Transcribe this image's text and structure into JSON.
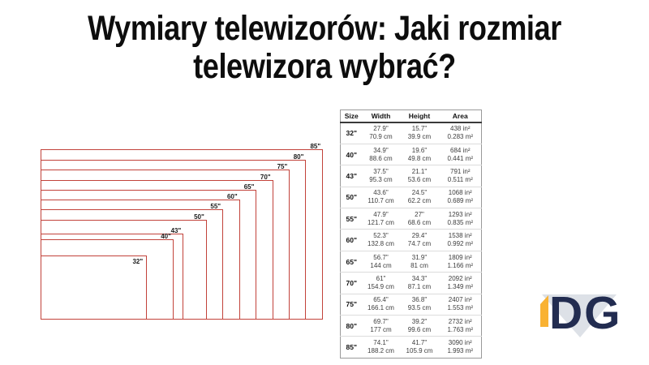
{
  "title": {
    "line1": "Wymiary telewizorów: Jaki rozmiar",
    "line2": "telewizora wybrać?"
  },
  "table": {
    "headers": [
      "Size",
      "Width",
      "Height",
      "Area"
    ],
    "rows": [
      {
        "size": "32\"",
        "width_in": "27.9\"",
        "width_cm": "70.9 cm",
        "height_in": "15.7\"",
        "height_cm": "39.9 cm",
        "area_in": "438 in²",
        "area_m": "0.283 m²"
      },
      {
        "size": "40\"",
        "width_in": "34.9\"",
        "width_cm": "88.6 cm",
        "height_in": "19.6\"",
        "height_cm": "49.8 cm",
        "area_in": "684 in²",
        "area_m": "0.441 m²"
      },
      {
        "size": "43\"",
        "width_in": "37.5\"",
        "width_cm": "95.3 cm",
        "height_in": "21.1\"",
        "height_cm": "53.6 cm",
        "area_in": "791 in²",
        "area_m": "0.511 m²"
      },
      {
        "size": "50\"",
        "width_in": "43.6\"",
        "width_cm": "110.7 cm",
        "height_in": "24.5\"",
        "height_cm": "62.2 cm",
        "area_in": "1068 in²",
        "area_m": "0.689 m²"
      },
      {
        "size": "55\"",
        "width_in": "47.9\"",
        "width_cm": "121.7 cm",
        "height_in": "27\"",
        "height_cm": "68.6 cm",
        "area_in": "1293 in²",
        "area_m": "0.835 m²"
      },
      {
        "size": "60\"",
        "width_in": "52.3\"",
        "width_cm": "132.8 cm",
        "height_in": "29.4\"",
        "height_cm": "74.7 cm",
        "area_in": "1538 in²",
        "area_m": "0.992 m²"
      },
      {
        "size": "65\"",
        "width_in": "56.7\"",
        "width_cm": "144 cm",
        "height_in": "31.9\"",
        "height_cm": "81 cm",
        "area_in": "1809 in²",
        "area_m": "1.166 m²"
      },
      {
        "size": "70\"",
        "width_in": "61\"",
        "width_cm": "154.9 cm",
        "height_in": "34.3\"",
        "height_cm": "87.1 cm",
        "area_in": "2092 in²",
        "area_m": "1.349 m²"
      },
      {
        "size": "75\"",
        "width_in": "65.4\"",
        "width_cm": "166.1 cm",
        "height_in": "36.8\"",
        "height_cm": "93.5 cm",
        "area_in": "2407 in²",
        "area_m": "1.553 m²"
      },
      {
        "size": "80\"",
        "width_in": "69.7\"",
        "width_cm": "177 cm",
        "height_in": "39.2\"",
        "height_cm": "99.6 cm",
        "area_in": "2732 in²",
        "area_m": "1.763 m²"
      },
      {
        "size": "85\"",
        "width_in": "74.1\"",
        "width_cm": "188.2 cm",
        "height_in": "41.7\"",
        "height_cm": "105.9 cm",
        "area_in": "3090 in²",
        "area_m": "1.993 m²"
      }
    ]
  },
  "diagram": {
    "line_color": "#c2423a",
    "scale_x": 1.85,
    "scale_y": 1.98,
    "rects": [
      {
        "label": "85\"",
        "w_cm": 188.2,
        "h_cm": 105.9
      },
      {
        "label": "80\"",
        "w_cm": 177.0,
        "h_cm": 99.6
      },
      {
        "label": "75\"",
        "w_cm": 166.1,
        "h_cm": 93.5
      },
      {
        "label": "70\"",
        "w_cm": 154.9,
        "h_cm": 87.1
      },
      {
        "label": "65\"",
        "w_cm": 144.0,
        "h_cm": 81.0
      },
      {
        "label": "60\"",
        "w_cm": 132.8,
        "h_cm": 74.7
      },
      {
        "label": "55\"",
        "w_cm": 121.7,
        "h_cm": 68.6
      },
      {
        "label": "50\"",
        "w_cm": 110.7,
        "h_cm": 62.2
      },
      {
        "label": "43\"",
        "w_cm": 95.3,
        "h_cm": 53.6
      },
      {
        "label": "40\"",
        "w_cm": 88.6,
        "h_cm": 49.8
      },
      {
        "label": "32\"",
        "w_cm": 70.9,
        "h_cm": 39.9
      }
    ]
  },
  "logo": {
    "letters": "DG",
    "navy": "#222c50",
    "yellow": "#f9b233",
    "gray": "#dde1e7"
  }
}
